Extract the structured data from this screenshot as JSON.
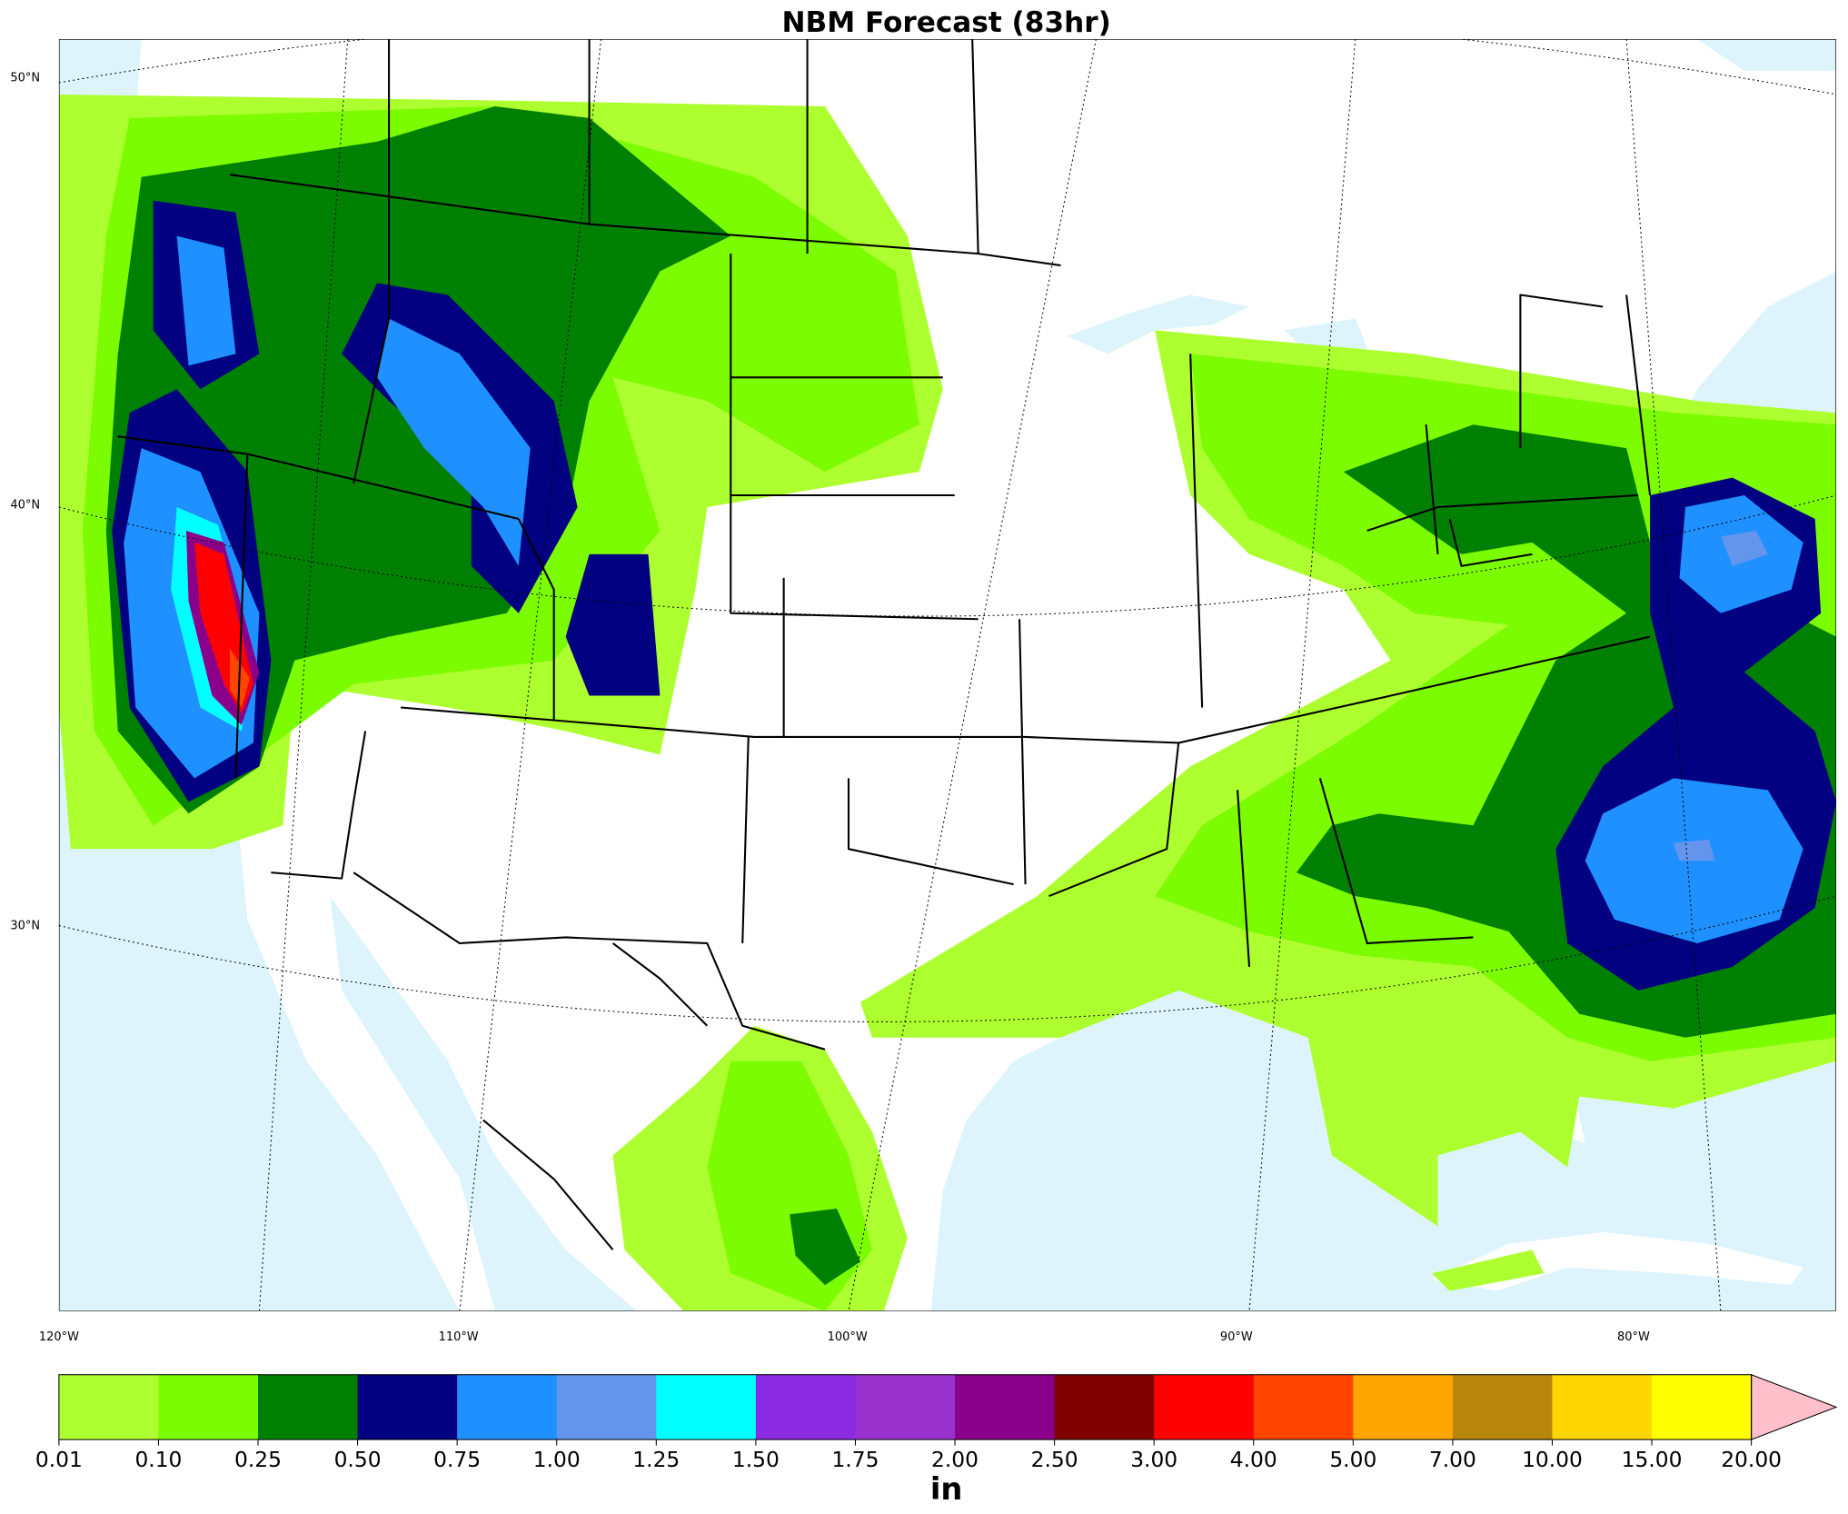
{
  "map": {
    "title": "NBM Forecast (83hr)",
    "lat_labels": [
      "50°N",
      "40°N",
      "30°N"
    ],
    "lon_labels": [
      "120°W",
      "110°W",
      "100°W",
      "90°W",
      "80°W"
    ]
  },
  "colorbar": {
    "levels": [
      0.01,
      {
        "value": 0.1,
        "label": "0.10"
      },
      0.25,
      {
        "value": 0.5,
        "label": "0.50"
      },
      0.75,
      {
        "value": 1,
        "label": "1.00"
      },
      1.25,
      {
        "value": 1.5,
        "label": "1.50"
      },
      1.75,
      {
        "value": 2,
        "label": "2.00"
      },
      {
        "value": 2.5,
        "label": "2.50"
      },
      {
        "value": 3,
        "label": "3.00"
      },
      {
        "value": 4,
        "label": "4.00"
      },
      {
        "value": 5,
        "label": "5.00"
      },
      {
        "value": 7,
        "label": "7.00"
      },
      {
        "value": 10,
        "label": "10.00"
      },
      {
        "value": 15,
        "label": "15.00"
      },
      {
        "value": 20,
        "label": "20.00"
      }
    ],
    "colors": [
      "#adff2f",
      "#7cfc00",
      "#008000",
      "#000080",
      "#1e90ff",
      "#6495ed",
      "#00ffff",
      "#8a2be2",
      "#9932cc",
      "#8b008b",
      "#800000",
      "#ff0000",
      "#ff4500",
      "#ffa500",
      "#b8860b",
      "#ffd700",
      "#ffff00"
    ],
    "extend_color": "#ffc0cb",
    "unit": "in"
  }
}
